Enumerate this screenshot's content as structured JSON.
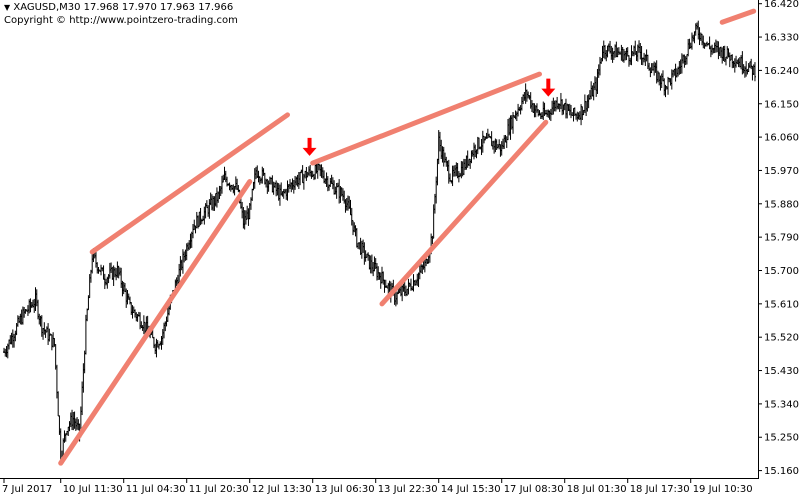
{
  "header": {
    "symbol_line": "XAGUSD,M30  17.968 17.970 17.963 17.966",
    "copyright": "Copyright © http://www.pointzero-trading.com"
  },
  "chart_data": {
    "type": "bar",
    "subtype": "ohlc-price-chart",
    "symbol": "XAGUSD",
    "timeframe": "M30",
    "quote": {
      "open": 17.968,
      "high": 17.97,
      "low": 17.963,
      "close": 17.966
    },
    "ylim": [
      15.14,
      16.43
    ],
    "y_ticks": [
      "16.420",
      "16.330",
      "16.240",
      "16.150",
      "16.060",
      "15.970",
      "15.880",
      "15.790",
      "15.700",
      "15.610",
      "15.520",
      "15.430",
      "15.340",
      "15.250",
      "15.160"
    ],
    "y_tick_values": [
      16.42,
      16.33,
      16.24,
      16.15,
      16.06,
      15.97,
      15.88,
      15.79,
      15.7,
      15.61,
      15.52,
      15.43,
      15.34,
      15.25,
      15.16
    ],
    "x_ticks": [
      "7 Jul 2017",
      "10 Jul 11:30",
      "11 Jul 04:30",
      "11 Jul 20:30",
      "12 Jul 13:30",
      "13 Jul 06:30",
      "13 Jul 22:30",
      "14 Jul 15:30",
      "17 Jul 08:30",
      "18 Jul 01:30",
      "18 Jul 17:30",
      "19 Jul 10:30"
    ],
    "x_tick_index": [
      0,
      9,
      19,
      29,
      39,
      49,
      59,
      69,
      79,
      89,
      99,
      109
    ],
    "n_bars": 120,
    "price_path": [
      [
        0,
        15.48
      ],
      [
        3,
        15.58
      ],
      [
        5,
        15.62
      ],
      [
        6,
        15.55
      ],
      [
        8,
        15.5
      ],
      [
        9,
        15.2
      ],
      [
        10,
        15.28
      ],
      [
        11,
        15.3
      ],
      [
        12,
        15.26
      ],
      [
        13,
        15.55
      ],
      [
        14,
        15.74
      ],
      [
        16,
        15.68
      ],
      [
        18,
        15.7
      ],
      [
        20,
        15.6
      ],
      [
        22,
        15.56
      ],
      [
        24,
        15.5
      ],
      [
        25,
        15.52
      ],
      [
        27,
        15.65
      ],
      [
        30,
        15.82
      ],
      [
        32,
        15.86
      ],
      [
        34,
        15.9
      ],
      [
        35,
        15.95
      ],
      [
        37,
        15.92
      ],
      [
        38,
        15.83
      ],
      [
        39,
        15.86
      ],
      [
        40,
        15.97
      ],
      [
        42,
        15.94
      ],
      [
        44,
        15.9
      ],
      [
        46,
        15.94
      ],
      [
        48,
        15.96
      ],
      [
        50,
        15.97
      ],
      [
        52,
        15.93
      ],
      [
        54,
        15.9
      ],
      [
        55,
        15.85
      ],
      [
        56,
        15.78
      ],
      [
        58,
        15.72
      ],
      [
        60,
        15.68
      ],
      [
        62,
        15.63
      ],
      [
        64,
        15.65
      ],
      [
        65,
        15.67
      ],
      [
        67,
        15.72
      ],
      [
        68,
        15.8
      ],
      [
        69,
        16.05
      ],
      [
        70,
        15.99
      ],
      [
        71,
        15.95
      ],
      [
        73,
        15.98
      ],
      [
        75,
        16.04
      ],
      [
        77,
        16.05
      ],
      [
        79,
        16.03
      ],
      [
        80,
        16.08
      ],
      [
        81,
        16.12
      ],
      [
        83,
        16.18
      ],
      [
        84,
        16.14
      ],
      [
        85,
        16.12
      ],
      [
        86,
        16.12
      ],
      [
        88,
        16.16
      ],
      [
        90,
        16.12
      ],
      [
        91,
        16.12
      ],
      [
        92,
        16.14
      ],
      [
        94,
        16.2
      ],
      [
        95,
        16.3
      ],
      [
        97,
        16.29
      ],
      [
        99,
        16.28
      ],
      [
        101,
        16.29
      ],
      [
        103,
        16.24
      ],
      [
        105,
        16.2
      ],
      [
        107,
        16.24
      ],
      [
        108,
        16.28
      ],
      [
        109,
        16.32
      ],
      [
        110,
        16.35
      ],
      [
        112,
        16.3
      ],
      [
        114,
        16.29
      ],
      [
        119,
        16.24
      ]
    ],
    "trendlines": [
      {
        "from": [
          9,
          15.18
        ],
        "to": [
          39,
          15.94
        ]
      },
      {
        "from": [
          14,
          15.75
        ],
        "to": [
          45,
          16.12
        ]
      },
      {
        "from": [
          49,
          15.99
        ],
        "to": [
          85,
          16.23
        ]
      },
      {
        "from": [
          60,
          15.61
        ],
        "to": [
          86,
          16.1
        ]
      },
      {
        "from": [
          114,
          16.37
        ],
        "to": [
          119,
          16.4
        ]
      }
    ],
    "trendline_color": "#f08070",
    "arrows": [
      {
        "x": 48.5,
        "y": 16.02,
        "icon": "arrow-down-icon"
      },
      {
        "x": 86.4,
        "y": 16.18,
        "icon": "arrow-down-icon"
      }
    ],
    "arrow_color": "#ff0000",
    "bar_color": "#000000",
    "grid": false
  }
}
